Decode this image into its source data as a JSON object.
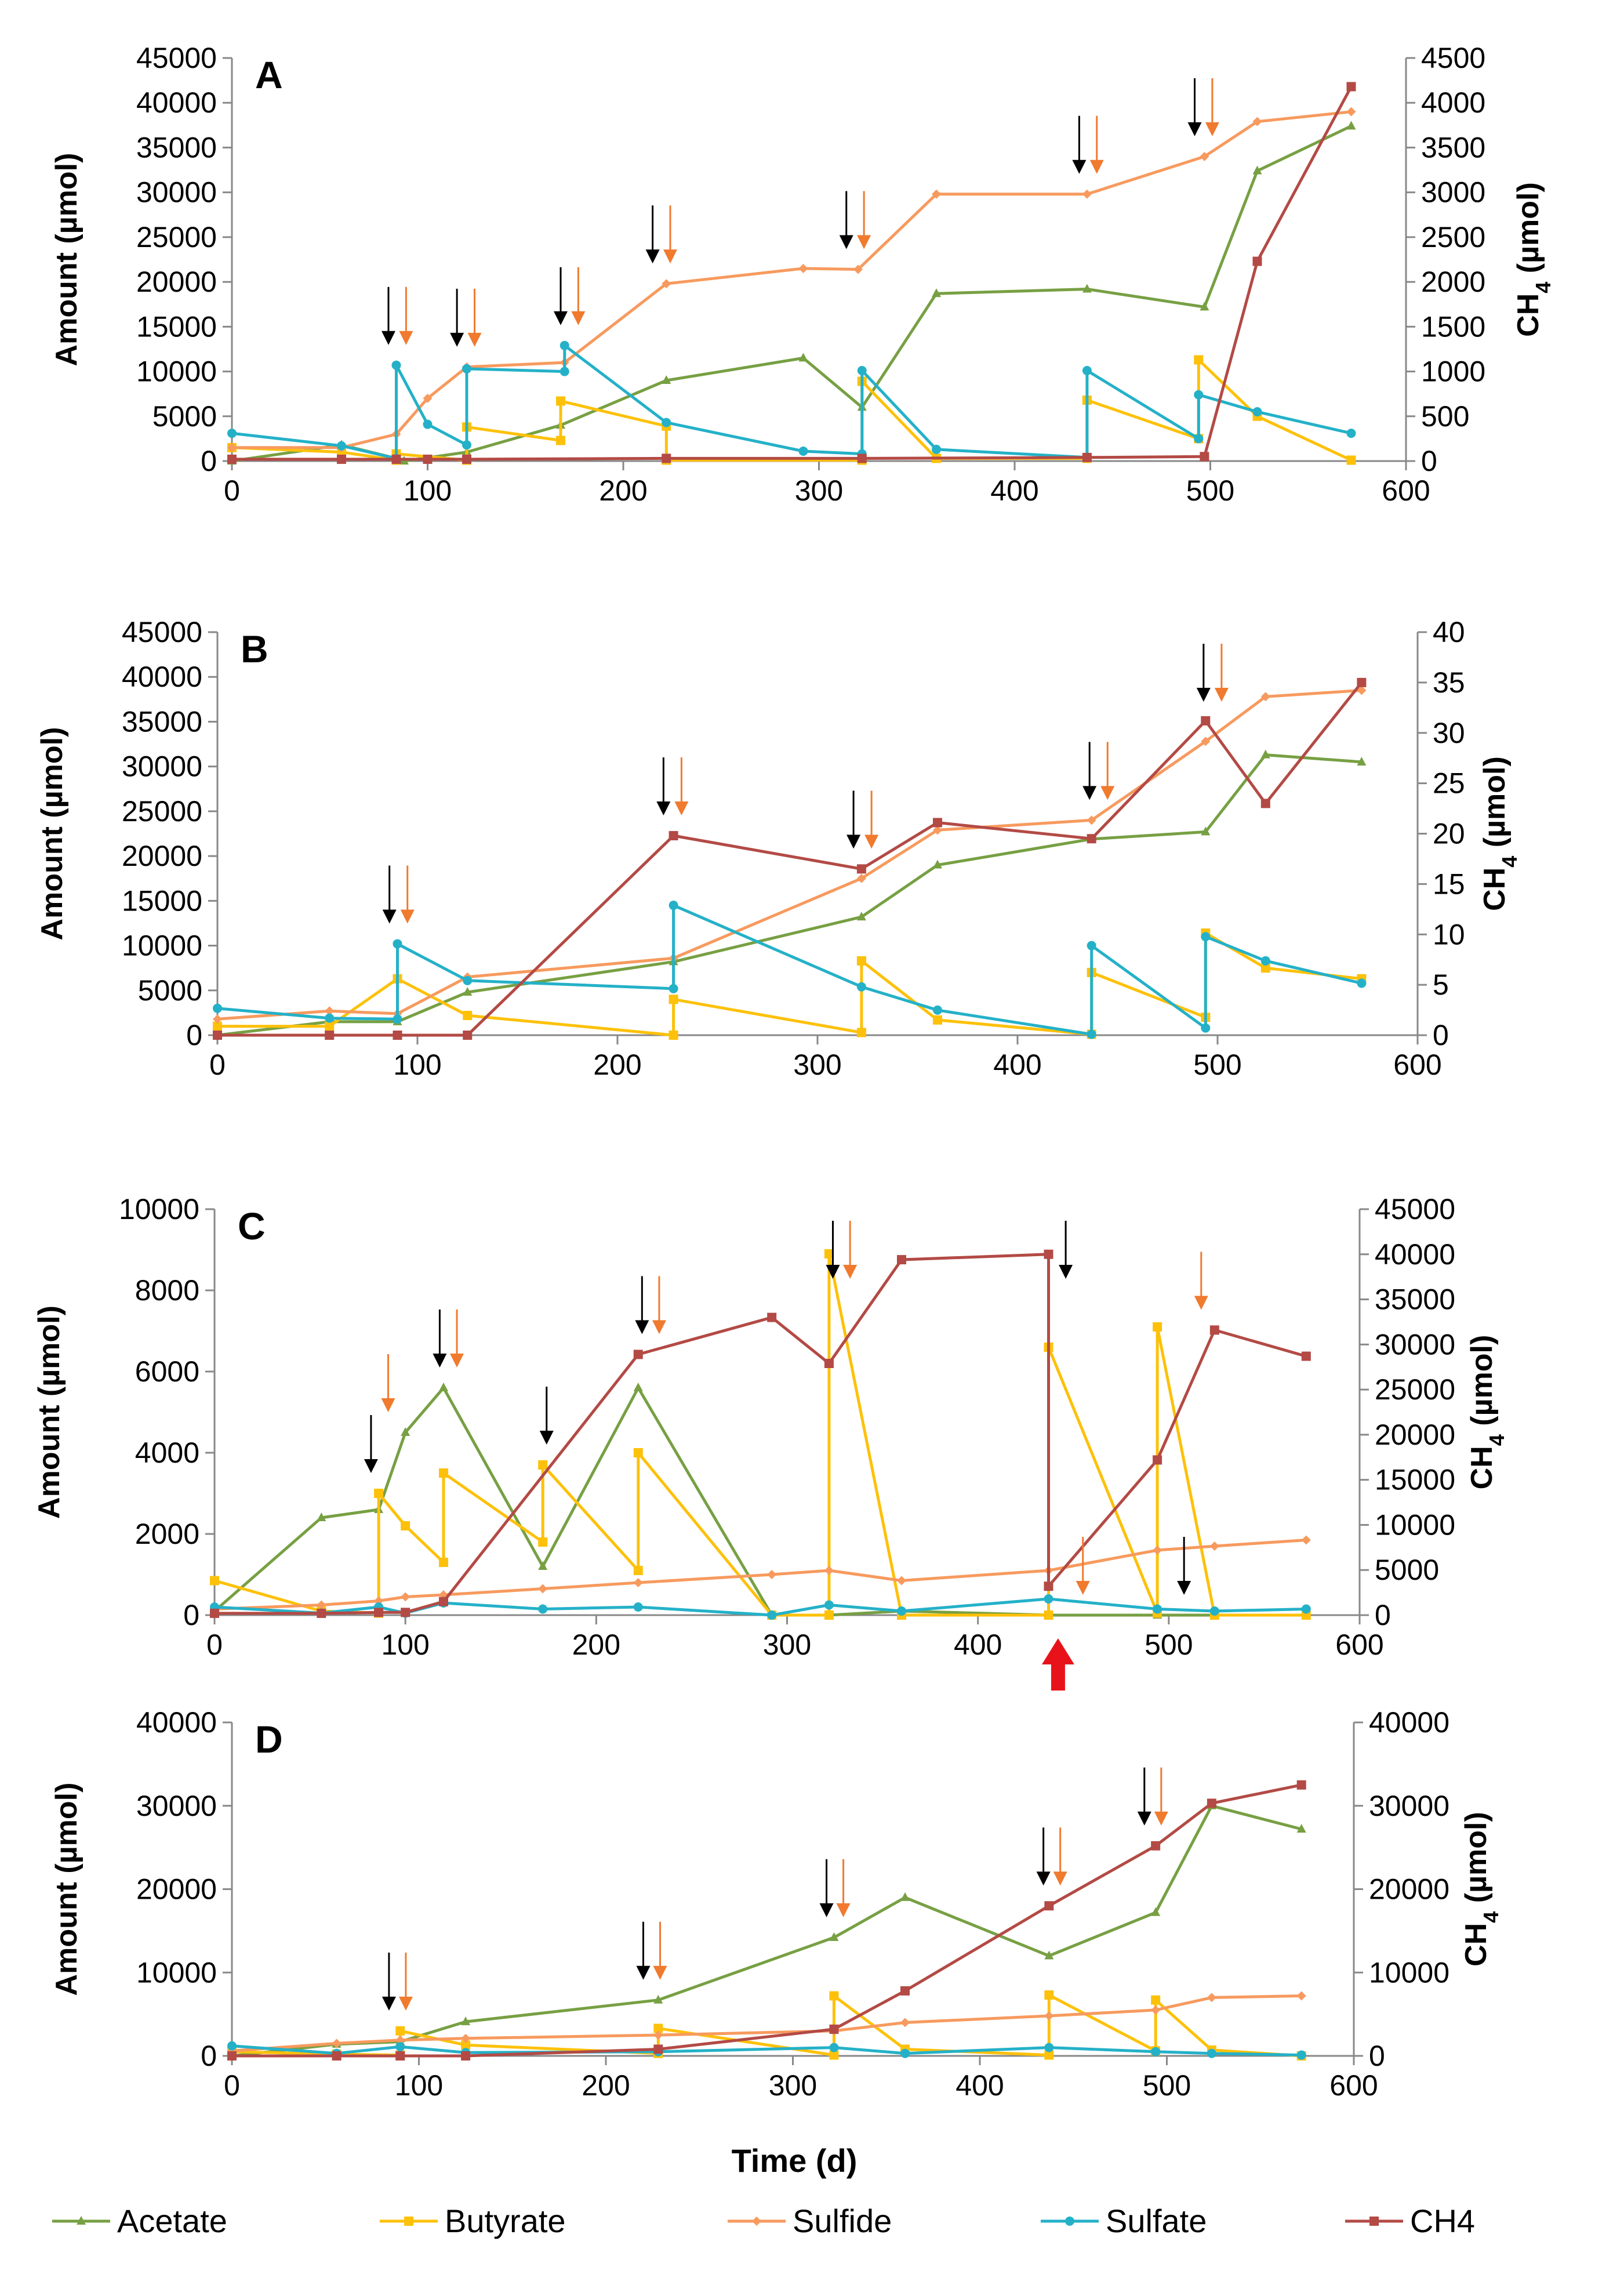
{
  "figure": {
    "xlabel": "Time (d)",
    "colors": {
      "Acetate": "#77a043",
      "Butyrate": "#fdc10a",
      "Sulfide": "#f79a5e",
      "Sulfate": "#24b1c8",
      "CH4": "#b34a45",
      "arrow_black": "#000000",
      "arrow_orange": "#f07a2e",
      "arrow_red": "#e8131a"
    }
  },
  "legend": [
    {
      "label": "Acetate",
      "marker": "triangle"
    },
    {
      "label": "Butyrate",
      "marker": "square"
    },
    {
      "label": "Sulfide",
      "marker": "diamond"
    },
    {
      "label": "Sulfate",
      "marker": "circle"
    },
    {
      "label": "CH4",
      "marker": "square"
    }
  ],
  "chart_data": [
    {
      "type": "line",
      "panel": "A",
      "xlabel": "Time (d)",
      "ylabel": "Amount (µmol)",
      "y2label_main": "CH",
      "y2label_sub": "4",
      "y2label_tail": " (µmol)",
      "xlim": [
        0,
        600
      ],
      "ylim": [
        0,
        45000
      ],
      "y2lim": [
        0,
        4500
      ],
      "x_ticks": [
        "0",
        "100",
        "200",
        "300",
        "400",
        "500",
        "600"
      ],
      "y_ticks": [
        "0",
        "5000",
        "10000",
        "15000",
        "20000",
        "25000",
        "30000",
        "35000",
        "40000",
        "45000"
      ],
      "y2_ticks": [
        "0",
        "500",
        "1000",
        "1500",
        "2000",
        "2500",
        "3000",
        "3500",
        "4000",
        "4500"
      ],
      "series": [
        {
          "name": "Acetate",
          "axis": "left",
          "x": [
            0,
            56,
            84,
            88,
            120,
            168,
            222,
            292,
            322,
            360,
            437,
            497,
            524,
            572
          ],
          "y": [
            0,
            1800,
            300,
            0,
            1000,
            4000,
            9000,
            11500,
            6000,
            18700,
            19200,
            17200,
            32400,
            37400
          ]
        },
        {
          "name": "Butyrate",
          "axis": "left",
          "x": [
            0,
            56,
            84,
            84,
            120,
            120,
            168,
            168,
            222,
            222,
            322,
            322,
            360,
            437,
            437,
            494,
            494,
            524,
            572
          ],
          "y": [
            1500,
            1000,
            100,
            800,
            100,
            3800,
            2300,
            6700,
            3900,
            100,
            100,
            8900,
            300,
            300,
            6800,
            2500,
            11300,
            5000,
            100
          ]
        },
        {
          "name": "Sulfide",
          "axis": "left",
          "x": [
            0,
            56,
            84,
            100,
            120,
            170,
            222,
            292,
            320,
            360,
            437,
            497,
            524,
            572
          ],
          "y": [
            1500,
            1500,
            3000,
            7000,
            10500,
            11000,
            19800,
            21500,
            21400,
            29800,
            29800,
            34000,
            37900,
            39000
          ]
        },
        {
          "name": "Sulfate",
          "axis": "left",
          "x": [
            0,
            56,
            84,
            84,
            100,
            120,
            120,
            170,
            170,
            222,
            292,
            322,
            322,
            360,
            437,
            437,
            494,
            494,
            524,
            572
          ],
          "y": [
            3100,
            1700,
            300,
            10700,
            4100,
            1800,
            10300,
            10000,
            12900,
            4300,
            1100,
            800,
            10100,
            1300,
            400,
            10100,
            2500,
            7400,
            5500,
            3100
          ]
        },
        {
          "name": "CH4",
          "axis": "right",
          "x": [
            0,
            56,
            84,
            100,
            120,
            222,
            322,
            437,
            497,
            524,
            572
          ],
          "y": [
            20,
            20,
            20,
            20,
            20,
            30,
            30,
            40,
            50,
            2230,
            4180
          ]
        }
      ],
      "arrows": [
        {
          "x": 80,
          "color": "black"
        },
        {
          "x": 89,
          "color": "orange"
        },
        {
          "x": 115,
          "color": "black"
        },
        {
          "x": 124,
          "color": "orange"
        },
        {
          "x": 168,
          "color": "black"
        },
        {
          "x": 177,
          "color": "orange"
        },
        {
          "x": 215,
          "color": "black"
        },
        {
          "x": 224,
          "color": "orange"
        },
        {
          "x": 314,
          "color": "black"
        },
        {
          "x": 323,
          "color": "orange"
        },
        {
          "x": 433,
          "color": "black"
        },
        {
          "x": 442,
          "color": "orange"
        },
        {
          "x": 492,
          "color": "black"
        },
        {
          "x": 501,
          "color": "orange"
        }
      ]
    },
    {
      "type": "line",
      "panel": "B",
      "xlabel": "Time (d)",
      "ylabel": "Amount (µmol)",
      "y2label_main": "CH",
      "y2label_sub": "4",
      "y2label_tail": " (µmol)",
      "xlim": [
        0,
        600
      ],
      "ylim": [
        0,
        45000
      ],
      "y2lim": [
        0,
        40
      ],
      "x_ticks": [
        "0",
        "100",
        "200",
        "300",
        "400",
        "500",
        "600"
      ],
      "y_ticks": [
        "0",
        "5000",
        "10000",
        "15000",
        "20000",
        "25000",
        "30000",
        "35000",
        "40000",
        "45000"
      ],
      "y2_ticks": [
        "0",
        "5",
        "10",
        "15",
        "20",
        "25",
        "30",
        "35",
        "40"
      ],
      "series": [
        {
          "name": "Acetate",
          "axis": "left",
          "x": [
            0,
            56,
            90,
            125,
            228,
            322,
            360,
            437,
            494,
            524,
            572
          ],
          "y": [
            0,
            1500,
            1500,
            4800,
            8200,
            13200,
            19000,
            21900,
            22700,
            31300,
            30500
          ]
        },
        {
          "name": "Butyrate",
          "axis": "left",
          "x": [
            0,
            56,
            90,
            125,
            228,
            228,
            322,
            322,
            360,
            437,
            437,
            494,
            494,
            524,
            572
          ],
          "y": [
            1000,
            1000,
            6300,
            2200,
            0,
            4000,
            300,
            8300,
            1700,
            100,
            7000,
            2000,
            11400,
            7500,
            6300
          ]
        },
        {
          "name": "Sulfide",
          "axis": "left",
          "x": [
            0,
            56,
            90,
            125,
            228,
            322,
            360,
            437,
            494,
            524,
            572
          ],
          "y": [
            1800,
            2700,
            2400,
            6500,
            8600,
            17500,
            22900,
            24000,
            32800,
            37800,
            38500
          ]
        },
        {
          "name": "Sulfate",
          "axis": "left",
          "x": [
            0,
            56,
            90,
            90,
            125,
            228,
            228,
            322,
            360,
            437,
            437,
            494,
            494,
            524,
            572
          ],
          "y": [
            3000,
            1900,
            1800,
            10200,
            6100,
            5200,
            14500,
            5400,
            2800,
            100,
            10000,
            800,
            11000,
            8300,
            5800
          ]
        },
        {
          "name": "CH4",
          "axis": "right",
          "x": [
            0,
            56,
            90,
            125,
            228,
            322,
            360,
            437,
            494,
            524,
            572
          ],
          "y": [
            0,
            0,
            0,
            0,
            19.8,
            16.5,
            21.1,
            19.5,
            31.2,
            23,
            35
          ]
        }
      ],
      "arrows": [
        {
          "x": 86,
          "color": "black"
        },
        {
          "x": 95,
          "color": "orange"
        },
        {
          "x": 223,
          "color": "black"
        },
        {
          "x": 232,
          "color": "orange"
        },
        {
          "x": 318,
          "color": "black"
        },
        {
          "x": 327,
          "color": "orange"
        },
        {
          "x": 436,
          "color": "black"
        },
        {
          "x": 445,
          "color": "orange"
        },
        {
          "x": 493,
          "color": "black"
        },
        {
          "x": 502,
          "color": "orange"
        }
      ]
    },
    {
      "type": "line",
      "panel": "C",
      "xlabel": "Time (d)",
      "ylabel": "Amount (µmol)",
      "y2label_main": "CH",
      "y2label_sub": "4",
      "y2label_tail": " (µmol)",
      "xlim": [
        0,
        600
      ],
      "ylim": [
        0,
        10000
      ],
      "y2lim": [
        0,
        45000
      ],
      "x_ticks": [
        "0",
        "100",
        "200",
        "300",
        "400",
        "500",
        "600"
      ],
      "y_ticks": [
        "0",
        "2000",
        "4000",
        "6000",
        "8000",
        "10000"
      ],
      "y2_ticks": [
        "0",
        "5000",
        "10000",
        "15000",
        "20000",
        "25000",
        "30000",
        "35000",
        "40000",
        "45000"
      ],
      "series": [
        {
          "name": "Acetate",
          "axis": "left",
          "x": [
            0,
            56,
            86,
            100,
            120,
            172,
            222,
            292,
            322,
            360,
            437,
            494,
            524,
            572
          ],
          "y": [
            100,
            2400,
            2600,
            4500,
            5600,
            1200,
            5600,
            0,
            0,
            100,
            0,
            0,
            0,
            0
          ]
        },
        {
          "name": "Butyrate",
          "axis": "left",
          "x": [
            0,
            56,
            86,
            86,
            100,
            120,
            120,
            172,
            172,
            222,
            222,
            292,
            322,
            322,
            360,
            437,
            437,
            494,
            494,
            524,
            572
          ],
          "y": [
            850,
            100,
            50,
            3000,
            2200,
            1300,
            3500,
            1800,
            3700,
            1100,
            4000,
            0,
            0,
            8900,
            0,
            0,
            6600,
            50,
            7100,
            0,
            0
          ]
        },
        {
          "name": "Sulfide",
          "axis": "left",
          "x": [
            0,
            56,
            86,
            100,
            120,
            172,
            222,
            292,
            322,
            360,
            437,
            494,
            524,
            572
          ],
          "y": [
            150,
            250,
            350,
            450,
            500,
            650,
            800,
            1000,
            1100,
            850,
            1100,
            1600,
            1700,
            1850
          ]
        },
        {
          "name": "Sulfate",
          "axis": "left",
          "x": [
            0,
            56,
            86,
            100,
            120,
            172,
            222,
            292,
            322,
            360,
            437,
            494,
            524,
            572
          ],
          "y": [
            200,
            50,
            200,
            50,
            300,
            150,
            200,
            0,
            250,
            100,
            400,
            150,
            100,
            150
          ]
        },
        {
          "name": "CH4",
          "axis": "right",
          "x": [
            0,
            56,
            86,
            100,
            120,
            222,
            292,
            322,
            360,
            437,
            437,
            494,
            524,
            572
          ],
          "y": [
            200,
            200,
            300,
            300,
            1500,
            28900,
            33000,
            27900,
            39400,
            40000,
            3200,
            17200,
            31600,
            28700
          ]
        }
      ],
      "arrows": [
        {
          "x": 82,
          "color": "black"
        },
        {
          "x": 91,
          "color": "orange"
        },
        {
          "x": 118,
          "color": "black"
        },
        {
          "x": 127,
          "color": "orange"
        },
        {
          "x": 174,
          "color": "black"
        },
        {
          "x": 224,
          "color": "black"
        },
        {
          "x": 233,
          "color": "orange"
        },
        {
          "x": 324,
          "color": "black"
        },
        {
          "x": 333,
          "color": "orange"
        },
        {
          "x": 446,
          "color": "black"
        },
        {
          "x": 455,
          "color": "orange"
        },
        {
          "x": 508,
          "color": "black"
        },
        {
          "x": 517,
          "color": "orange"
        }
      ],
      "red_arrow": {
        "x": 442
      }
    },
    {
      "type": "line",
      "panel": "D",
      "xlabel": "Time (d)",
      "ylabel": "Amount (µmol)",
      "y2label_main": "CH",
      "y2label_sub": "4",
      "y2label_tail": " (µmol)",
      "xlim": [
        0,
        600
      ],
      "ylim": [
        0,
        40000
      ],
      "y2lim": [
        0,
        40000
      ],
      "x_ticks": [
        "0",
        "100",
        "200",
        "300",
        "400",
        "500",
        "600"
      ],
      "y_ticks": [
        "0",
        "10000",
        "20000",
        "30000",
        "40000"
      ],
      "y2_ticks": [
        "0",
        "10000",
        "20000",
        "30000",
        "40000"
      ],
      "series": [
        {
          "name": "Acetate",
          "axis": "left",
          "x": [
            0,
            56,
            90,
            125,
            228,
            322,
            360,
            437,
            494,
            524,
            572
          ],
          "y": [
            0,
            1400,
            1700,
            4100,
            6700,
            14200,
            19000,
            12000,
            17200,
            30000,
            27200
          ]
        },
        {
          "name": "Butyrate",
          "axis": "left",
          "x": [
            0,
            56,
            90,
            90,
            125,
            228,
            228,
            322,
            322,
            360,
            437,
            437,
            494,
            494,
            524,
            572
          ],
          "y": [
            500,
            200,
            100,
            3000,
            1300,
            300,
            3300,
            100,
            7200,
            800,
            100,
            7300,
            600,
            6700,
            700,
            0
          ]
        },
        {
          "name": "Sulfide",
          "axis": "left",
          "x": [
            0,
            56,
            90,
            125,
            228,
            322,
            360,
            437,
            494,
            524,
            572
          ],
          "y": [
            600,
            1500,
            1900,
            2100,
            2500,
            3000,
            4000,
            4800,
            5500,
            7000,
            7200
          ]
        },
        {
          "name": "Sulfate",
          "axis": "left",
          "x": [
            0,
            56,
            90,
            125,
            228,
            322,
            360,
            437,
            494,
            524,
            572
          ],
          "y": [
            1200,
            300,
            1100,
            400,
            500,
            1000,
            300,
            1000,
            500,
            300,
            100
          ]
        },
        {
          "name": "CH4",
          "axis": "right",
          "x": [
            0,
            56,
            90,
            125,
            228,
            322,
            360,
            437,
            494,
            524,
            572
          ],
          "y": [
            0,
            0,
            0,
            0,
            800,
            3200,
            7800,
            18000,
            25200,
            30300,
            32500
          ]
        }
      ],
      "arrows": [
        {
          "x": 84,
          "color": "black"
        },
        {
          "x": 93,
          "color": "orange"
        },
        {
          "x": 220,
          "color": "black"
        },
        {
          "x": 229,
          "color": "orange"
        },
        {
          "x": 318,
          "color": "black"
        },
        {
          "x": 327,
          "color": "orange"
        },
        {
          "x": 434,
          "color": "black"
        },
        {
          "x": 443,
          "color": "orange"
        },
        {
          "x": 488,
          "color": "black"
        },
        {
          "x": 497,
          "color": "orange"
        }
      ]
    }
  ]
}
